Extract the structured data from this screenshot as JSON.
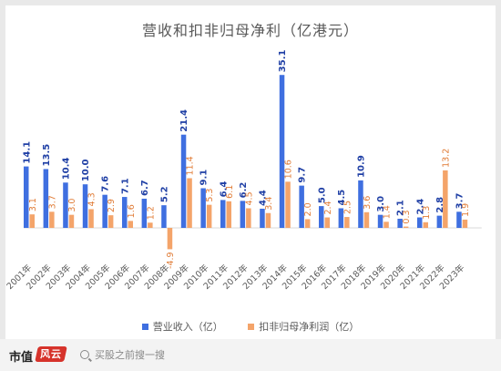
{
  "chart_data": {
    "type": "bar",
    "title": "营收和扣非归母净利（亿港元）",
    "categories": [
      "2001年",
      "2002年",
      "2003年",
      "2004年",
      "2005年",
      "2006年",
      "2007年",
      "2008年",
      "2009年",
      "2010年",
      "2011年",
      "2012年",
      "2013年",
      "2014年",
      "2015年",
      "2016年",
      "2017年",
      "2018年",
      "2019年",
      "2020年",
      "2021年",
      "2022年",
      "2023年"
    ],
    "series": [
      {
        "name": "营业收入（亿）",
        "color": "#3f6fe0",
        "values": [
          14.1,
          13.5,
          10.4,
          10.0,
          7.6,
          7.1,
          6.7,
          5.2,
          21.4,
          9.1,
          6.4,
          6.2,
          4.4,
          35.1,
          9.7,
          5.0,
          4.5,
          10.9,
          3.0,
          2.1,
          2.4,
          2.8,
          3.7
        ]
      },
      {
        "name": "扣非归母净利润（亿）",
        "color": "#f4a46a",
        "values": [
          3.1,
          3.7,
          3.0,
          4.3,
          2.9,
          1.6,
          1.2,
          -4.9,
          11.4,
          5.3,
          6.1,
          4.5,
          3.4,
          10.6,
          2.0,
          2.4,
          2.5,
          3.6,
          1.4,
          0.3,
          1.3,
          13.2,
          1.9
        ]
      }
    ],
    "legend": "bottom",
    "grid": false
  },
  "footer": {
    "brand": "市值",
    "brand_mark": "风云",
    "search_placeholder": "买股之前搜一搜"
  }
}
